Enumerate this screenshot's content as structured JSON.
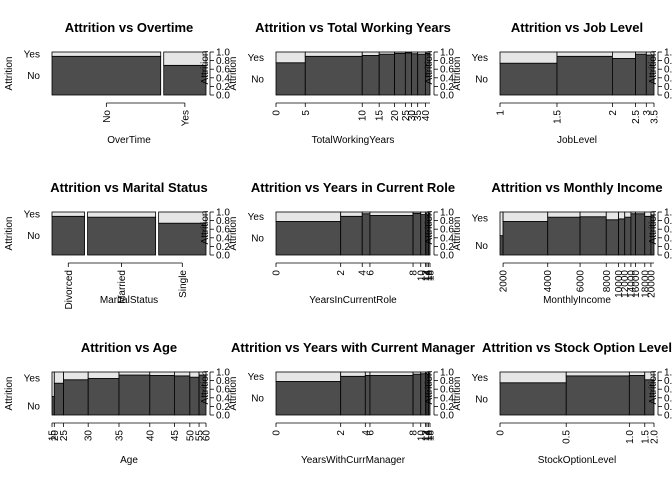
{
  "chart_data": [
    {
      "type": "spineplot",
      "title": "Attrition vs Overtime",
      "xlabel": "OverTime",
      "ylabel": "Attrition",
      "ylevels": [
        "No",
        "Yes"
      ],
      "right_axis": {
        "label": "Attrition",
        "ticks": [
          "0.0",
          "0.2",
          "0.4",
          "0.6",
          "0.8",
          "1.0"
        ]
      },
      "x_kind": "categorical",
      "bins": [
        {
          "label": "No",
          "width": 0.72,
          "no": 0.9
        },
        {
          "label": "Yes",
          "width": 0.28,
          "no": 0.69
        }
      ]
    },
    {
      "type": "spineplot",
      "title": "Attrition vs Total Working Years",
      "xlabel": "TotalWorkingYears",
      "ylabel": "Attrition",
      "ylevels": [
        "No",
        "Yes"
      ],
      "right_axis": {
        "label": "Attrition",
        "ticks": [
          "0.0",
          "0.2",
          "0.4",
          "0.6",
          "0.8",
          "1.0"
        ]
      },
      "x_kind": "numeric",
      "breaks": [
        0,
        5,
        10,
        15,
        20,
        25,
        30,
        35,
        40
      ],
      "bin_widths": [
        0.19,
        0.37,
        0.11,
        0.1,
        0.07,
        0.04,
        0.04,
        0.05,
        0.03
      ],
      "no_props": [
        0.75,
        0.9,
        0.92,
        0.95,
        0.97,
        0.98,
        0.96,
        0.95,
        0.97
      ]
    },
    {
      "type": "spineplot",
      "title": "Attrition vs Job Level",
      "xlabel": "JobLevel",
      "ylabel": "Attrition",
      "ylevels": [
        "No",
        "Yes"
      ],
      "right_axis": {
        "label": "Attrition",
        "ticks": [
          "0.0",
          "0.2",
          "0.4",
          "0.6",
          "0.8",
          "1.0"
        ]
      },
      "x_kind": "numeric",
      "breaks": [
        1,
        1.5,
        2,
        2.5,
        3,
        3.5,
        4,
        4.5,
        5
      ],
      "bin_widths": [
        0.37,
        0.36,
        0.15,
        0.07,
        0.05
      ],
      "no_props": [
        0.74,
        0.9,
        0.85,
        0.95,
        0.93
      ]
    },
    {
      "type": "spineplot",
      "title": "Attrition vs Marital Status",
      "xlabel": "MaritalStatus",
      "ylabel": "Attrition",
      "ylevels": [
        "No",
        "Yes"
      ],
      "right_axis": {
        "label": "Attrition",
        "ticks": [
          "0.0",
          "0.2",
          "0.4",
          "0.6",
          "0.8",
          "1.0"
        ]
      },
      "x_kind": "categorical",
      "bins": [
        {
          "label": "Divorced",
          "width": 0.22,
          "no": 0.9
        },
        {
          "label": "Married",
          "width": 0.46,
          "no": 0.88
        },
        {
          "label": "Single",
          "width": 0.32,
          "no": 0.74
        }
      ]
    },
    {
      "type": "spineplot",
      "title": "Attrition vs Years in Current Role",
      "xlabel": "YearsInCurrentRole",
      "ylabel": "Attrition",
      "ylevels": [
        "No",
        "Yes"
      ],
      "right_axis": {
        "label": "Attrition",
        "ticks": [
          "0.0",
          "0.2",
          "0.4",
          "0.6",
          "0.8",
          "1.0"
        ]
      },
      "x_kind": "numeric",
      "breaks": [
        0,
        2,
        4,
        6,
        8,
        10,
        12,
        14,
        16,
        18
      ],
      "bin_widths": [
        0.42,
        0.14,
        0.05,
        0.28,
        0.05,
        0.03,
        0.01,
        0.01,
        0.01
      ],
      "no_props": [
        0.78,
        0.9,
        0.96,
        0.92,
        0.97,
        0.94,
        0.96,
        0.92,
        0.97
      ]
    },
    {
      "type": "spineplot",
      "title": "Attrition vs Monthly Income",
      "xlabel": "MonthlyIncome",
      "ylabel": "Attrition",
      "ylevels": [
        "No",
        "Yes"
      ],
      "right_axis": {
        "label": "Attrition",
        "ticks": [
          "0.0",
          "0.2",
          "0.4",
          "0.6",
          "0.8",
          "1.0"
        ]
      },
      "x_kind": "numeric",
      "breaks": [
        2000,
        4000,
        6000,
        8000,
        10000,
        12000,
        14000,
        16000,
        18000,
        20000
      ],
      "tick_labels": [
        "2000",
        "4000",
        "6000",
        "8000",
        "10000",
        "12000",
        "14000",
        "16000",
        "18000",
        "20000"
      ],
      "lead_bin": {
        "width": 0.02,
        "no": 0.45
      },
      "bin_widths": [
        0.29,
        0.21,
        0.17,
        0.08,
        0.04,
        0.04,
        0.03,
        0.06,
        0.04,
        0.02
      ],
      "no_props": [
        0.78,
        0.88,
        0.89,
        0.82,
        0.84,
        0.88,
        0.96,
        0.96,
        0.9,
        0.93
      ]
    },
    {
      "type": "spineplot",
      "title": "Attrition vs Age",
      "xlabel": "Age",
      "ylabel": "Attrition",
      "ylevels": [
        "No",
        "Yes"
      ],
      "right_axis": {
        "label": "Attrition",
        "ticks": [
          "0.0",
          "0.2",
          "0.4",
          "0.6",
          "0.8",
          "1.0"
        ]
      },
      "x_kind": "numeric",
      "breaks": [
        15,
        20,
        25,
        30,
        35,
        40,
        45,
        50,
        55,
        60
      ],
      "bin_widths": [
        0.015,
        0.06,
        0.16,
        0.2,
        0.2,
        0.16,
        0.1,
        0.06,
        0.045
      ],
      "no_props": [
        0.43,
        0.74,
        0.82,
        0.85,
        0.93,
        0.92,
        0.91,
        0.88,
        0.93
      ]
    },
    {
      "type": "spineplot",
      "title": "Attrition vs Years with Current Manager",
      "xlabel": "YearsWithCurrManager",
      "ylabel": "Attrition",
      "ylevels": [
        "No",
        "Yes"
      ],
      "right_axis": {
        "label": "Attrition",
        "ticks": [
          "0.0",
          "0.2",
          "0.4",
          "0.6",
          "0.8",
          "1.0"
        ]
      },
      "x_kind": "numeric",
      "breaks": [
        0,
        2,
        4,
        6,
        8,
        10,
        12,
        14,
        16,
        18
      ],
      "bin_widths": [
        0.42,
        0.16,
        0.03,
        0.28,
        0.05,
        0.03,
        0.01,
        0.01,
        0.01
      ],
      "no_props": [
        0.78,
        0.9,
        0.92,
        0.92,
        0.95,
        0.96,
        0.97,
        0.95,
        0.97
      ]
    },
    {
      "type": "spineplot",
      "title": "Attrition vs Stock Option Level",
      "xlabel": "StockOptionLevel",
      "ylabel": "Attrition",
      "ylevels": [
        "No",
        "Yes"
      ],
      "right_axis": {
        "label": "Attrition",
        "ticks": [
          "0.0",
          "0.2",
          "0.4",
          "0.6",
          "0.8",
          "1.0"
        ]
      },
      "x_kind": "numeric",
      "breaks": [
        0,
        0.5,
        1,
        1.5,
        2,
        2.5,
        3
      ],
      "tick_labels": [
        "0",
        "0.5",
        "1.0",
        "1.5",
        "2.0",
        "2.5",
        "3"
      ],
      "bin_widths": [
        0.43,
        0.41,
        0.1,
        0.06
      ],
      "no_props": [
        0.75,
        0.91,
        0.92,
        0.82
      ]
    }
  ]
}
